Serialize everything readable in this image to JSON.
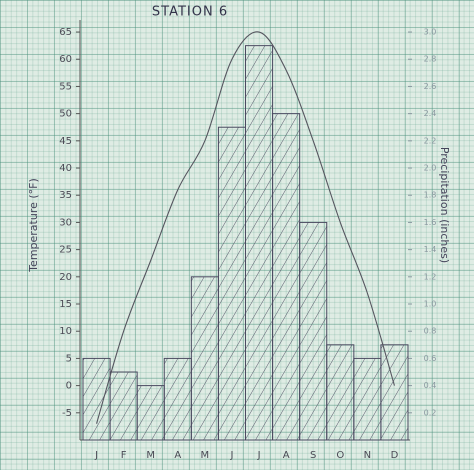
{
  "chart_data": {
    "type": "combo",
    "title": "STATION 6",
    "y_label": "Temperature (°F)",
    "y2_label": "Precipitation (inches)",
    "categories": [
      "J",
      "F",
      "M",
      "A",
      "M",
      "J",
      "J",
      "A",
      "S",
      "O",
      "N",
      "D"
    ],
    "series": [
      {
        "type": "bar",
        "axis": "y2",
        "color": "#4a4a60",
        "values": [
          0.6,
          0.5,
          0.4,
          0.6,
          1.2,
          2.3,
          2.9,
          2.4,
          1.6,
          0.7,
          0.6,
          0.7
        ]
      },
      {
        "type": "line",
        "color": "#55555f",
        "values": [
          -7,
          10,
          23,
          36,
          45,
          60,
          65,
          58,
          45,
          30,
          17,
          0
        ]
      }
    ],
    "ylim": [
      -10,
      66
    ],
    "yticks": [
      -5,
      0,
      5,
      10,
      15,
      20,
      25,
      30,
      35,
      40,
      45,
      50,
      55,
      60,
      65
    ],
    "y2lim": [
      0,
      3.04
    ],
    "y2ticks": [
      0.2,
      0.4,
      0.6,
      0.8,
      {
        "value": 1,
        "label": "1.0"
      },
      1.2,
      1.4,
      1.6,
      1.8,
      {
        "value": 2,
        "label": "2.0"
      },
      2.2,
      2.4,
      2.6,
      2.8,
      {
        "value": 3,
        "label": "3.0"
      }
    ]
  }
}
